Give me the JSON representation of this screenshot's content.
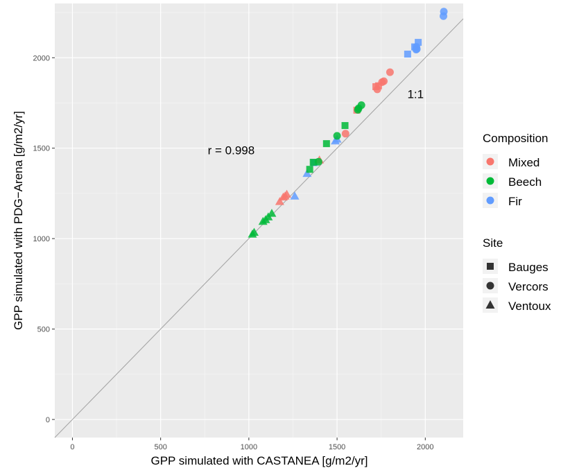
{
  "chart_data": {
    "type": "scatter",
    "xlabel": "GPP simulated with CASTANEA [g/m2/yr]",
    "ylabel": "GPP simulated with PDG−Arena [g/m2/yr]",
    "xlim": [
      -100,
      2215
    ],
    "ylim": [
      -100,
      2300
    ],
    "x_ticks": [
      0,
      500,
      1000,
      1500,
      2000
    ],
    "y_ticks": [
      0,
      500,
      1000,
      1500,
      2000
    ],
    "grid": true,
    "background": "#ebebeb",
    "reference_line": {
      "label": "1:1",
      "slope": 1,
      "intercept": 0,
      "color": "#a6a6a6",
      "label_x": 1945,
      "label_y": 1800
    },
    "annotations": [
      {
        "text": "r = 0.998",
        "x": 900,
        "y": 1490
      }
    ],
    "legend_position": "right",
    "legends": [
      {
        "title": "Composition",
        "entries": [
          {
            "key": "Mixed",
            "label": "Mixed",
            "color": "#F8766D"
          },
          {
            "key": "Beech",
            "label": "Beech",
            "color": "#00BA38"
          },
          {
            "key": "Fir",
            "label": "Fir",
            "color": "#619CFF"
          }
        ]
      },
      {
        "title": "Site",
        "entries": [
          {
            "key": "Bauges",
            "label": "Bauges",
            "shape": "square"
          },
          {
            "key": "Vercors",
            "label": "Vercors",
            "shape": "circle"
          },
          {
            "key": "Ventoux",
            "label": "Ventoux",
            "shape": "triangle"
          }
        ]
      }
    ],
    "series": [
      {
        "composition": "Fir",
        "site": "Vercors",
        "points": [
          [
            2105,
            2255
          ],
          [
            2103,
            2230
          ],
          [
            1950,
            2060
          ],
          [
            1948,
            2045
          ],
          [
            1952,
            2048
          ]
        ]
      },
      {
        "composition": "Fir",
        "site": "Bauges",
        "points": [
          [
            1960,
            2085
          ],
          [
            1940,
            2060
          ],
          [
            1900,
            2020
          ],
          [
            1370,
            1420
          ]
        ]
      },
      {
        "composition": "Fir",
        "site": "Ventoux",
        "points": [
          [
            1500,
            1550
          ],
          [
            1490,
            1540
          ],
          [
            1330,
            1360
          ],
          [
            1260,
            1235
          ]
        ]
      },
      {
        "composition": "Mixed",
        "site": "Vercors",
        "points": [
          [
            1800,
            1920
          ],
          [
            1765,
            1870
          ],
          [
            1755,
            1865
          ],
          [
            1728,
            1825
          ],
          [
            1548,
            1580
          ]
        ]
      },
      {
        "composition": "Mixed",
        "site": "Bauges",
        "points": [
          [
            1735,
            1845
          ],
          [
            1720,
            1840
          ],
          [
            1612,
            1710
          ]
        ]
      },
      {
        "composition": "Mixed",
        "site": "Ventoux",
        "points": [
          [
            1400,
            1435
          ],
          [
            1215,
            1245
          ],
          [
            1205,
            1235
          ],
          [
            1195,
            1230
          ],
          [
            1175,
            1205
          ]
        ]
      },
      {
        "composition": "Beech",
        "site": "Vercors",
        "points": [
          [
            1638,
            1738
          ],
          [
            1622,
            1720
          ],
          [
            1618,
            1712
          ],
          [
            1500,
            1568
          ],
          [
            1395,
            1425
          ]
        ]
      },
      {
        "composition": "Beech",
        "site": "Bauges",
        "points": [
          [
            1545,
            1625
          ],
          [
            1440,
            1525
          ],
          [
            1365,
            1422
          ],
          [
            1345,
            1383
          ]
        ]
      },
      {
        "composition": "Beech",
        "site": "Ventoux",
        "points": [
          [
            1130,
            1140
          ],
          [
            1110,
            1120
          ],
          [
            1095,
            1105
          ],
          [
            1080,
            1095
          ],
          [
            1030,
            1035
          ],
          [
            1020,
            1025
          ]
        ]
      }
    ]
  }
}
